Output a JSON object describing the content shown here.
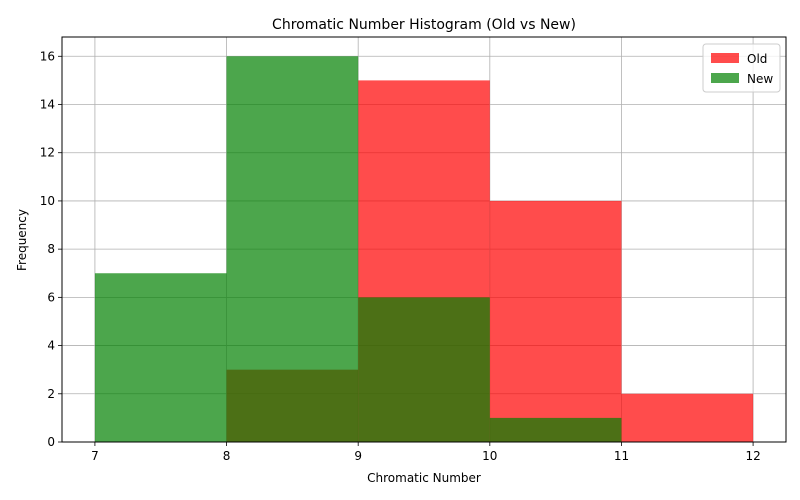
{
  "chart_data": {
    "type": "bar",
    "title": "Chromatic Number Histogram (Old vs New)",
    "xlabel": "Chromatic Number",
    "ylabel": "Frequency",
    "bin_edges": [
      7,
      8,
      9,
      10,
      11,
      12
    ],
    "x_ticks": [
      7,
      8,
      9,
      10,
      11,
      12
    ],
    "y_ticks": [
      0,
      2,
      4,
      6,
      8,
      10,
      12,
      14,
      16
    ],
    "xlim": [
      6.75,
      12.25
    ],
    "ylim": [
      0,
      16.8
    ],
    "grid": true,
    "legend_position": "top-right",
    "series": [
      {
        "name": "Old",
        "color": "#ff0000",
        "opacity": 0.7,
        "values": [
          0,
          3,
          15,
          10,
          2
        ]
      },
      {
        "name": "New",
        "color": "#008000",
        "opacity": 0.7,
        "values": [
          7,
          16,
          6,
          1,
          0
        ]
      }
    ]
  }
}
